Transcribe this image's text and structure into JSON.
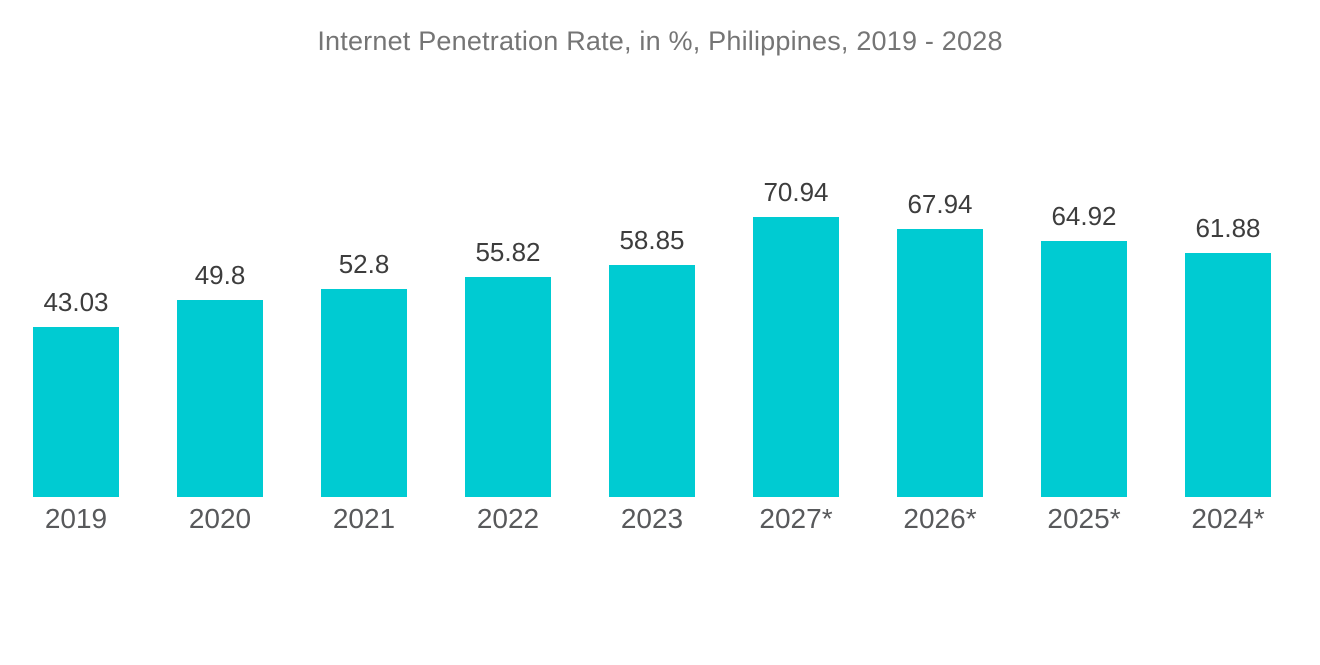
{
  "chart_data": {
    "type": "bar",
    "title": "Internet Penetration Rate, in %, Philippines, 2019 - 2028",
    "categories": [
      "2019",
      "2020",
      "2021",
      "2022",
      "2023",
      "2027*",
      "2026*",
      "2025*",
      "2024*"
    ],
    "values": [
      43.03,
      49.8,
      52.8,
      55.82,
      58.85,
      70.94,
      67.94,
      64.92,
      61.88
    ],
    "value_labels": [
      "43.03",
      "49.8",
      "52.8",
      "55.82",
      "58.85",
      "70.94",
      "67.94",
      "64.92",
      "61.88"
    ],
    "xlabel": "",
    "ylabel": "",
    "ylim": [
      0,
      80
    ],
    "grid": false,
    "legend_position": "none",
    "bar_color": "#00CBD2",
    "title_color": "#757575",
    "value_label_color": "#3D3D3D",
    "axis_tick_label_color": "#58595B",
    "background_color": "#FFFFFF"
  }
}
